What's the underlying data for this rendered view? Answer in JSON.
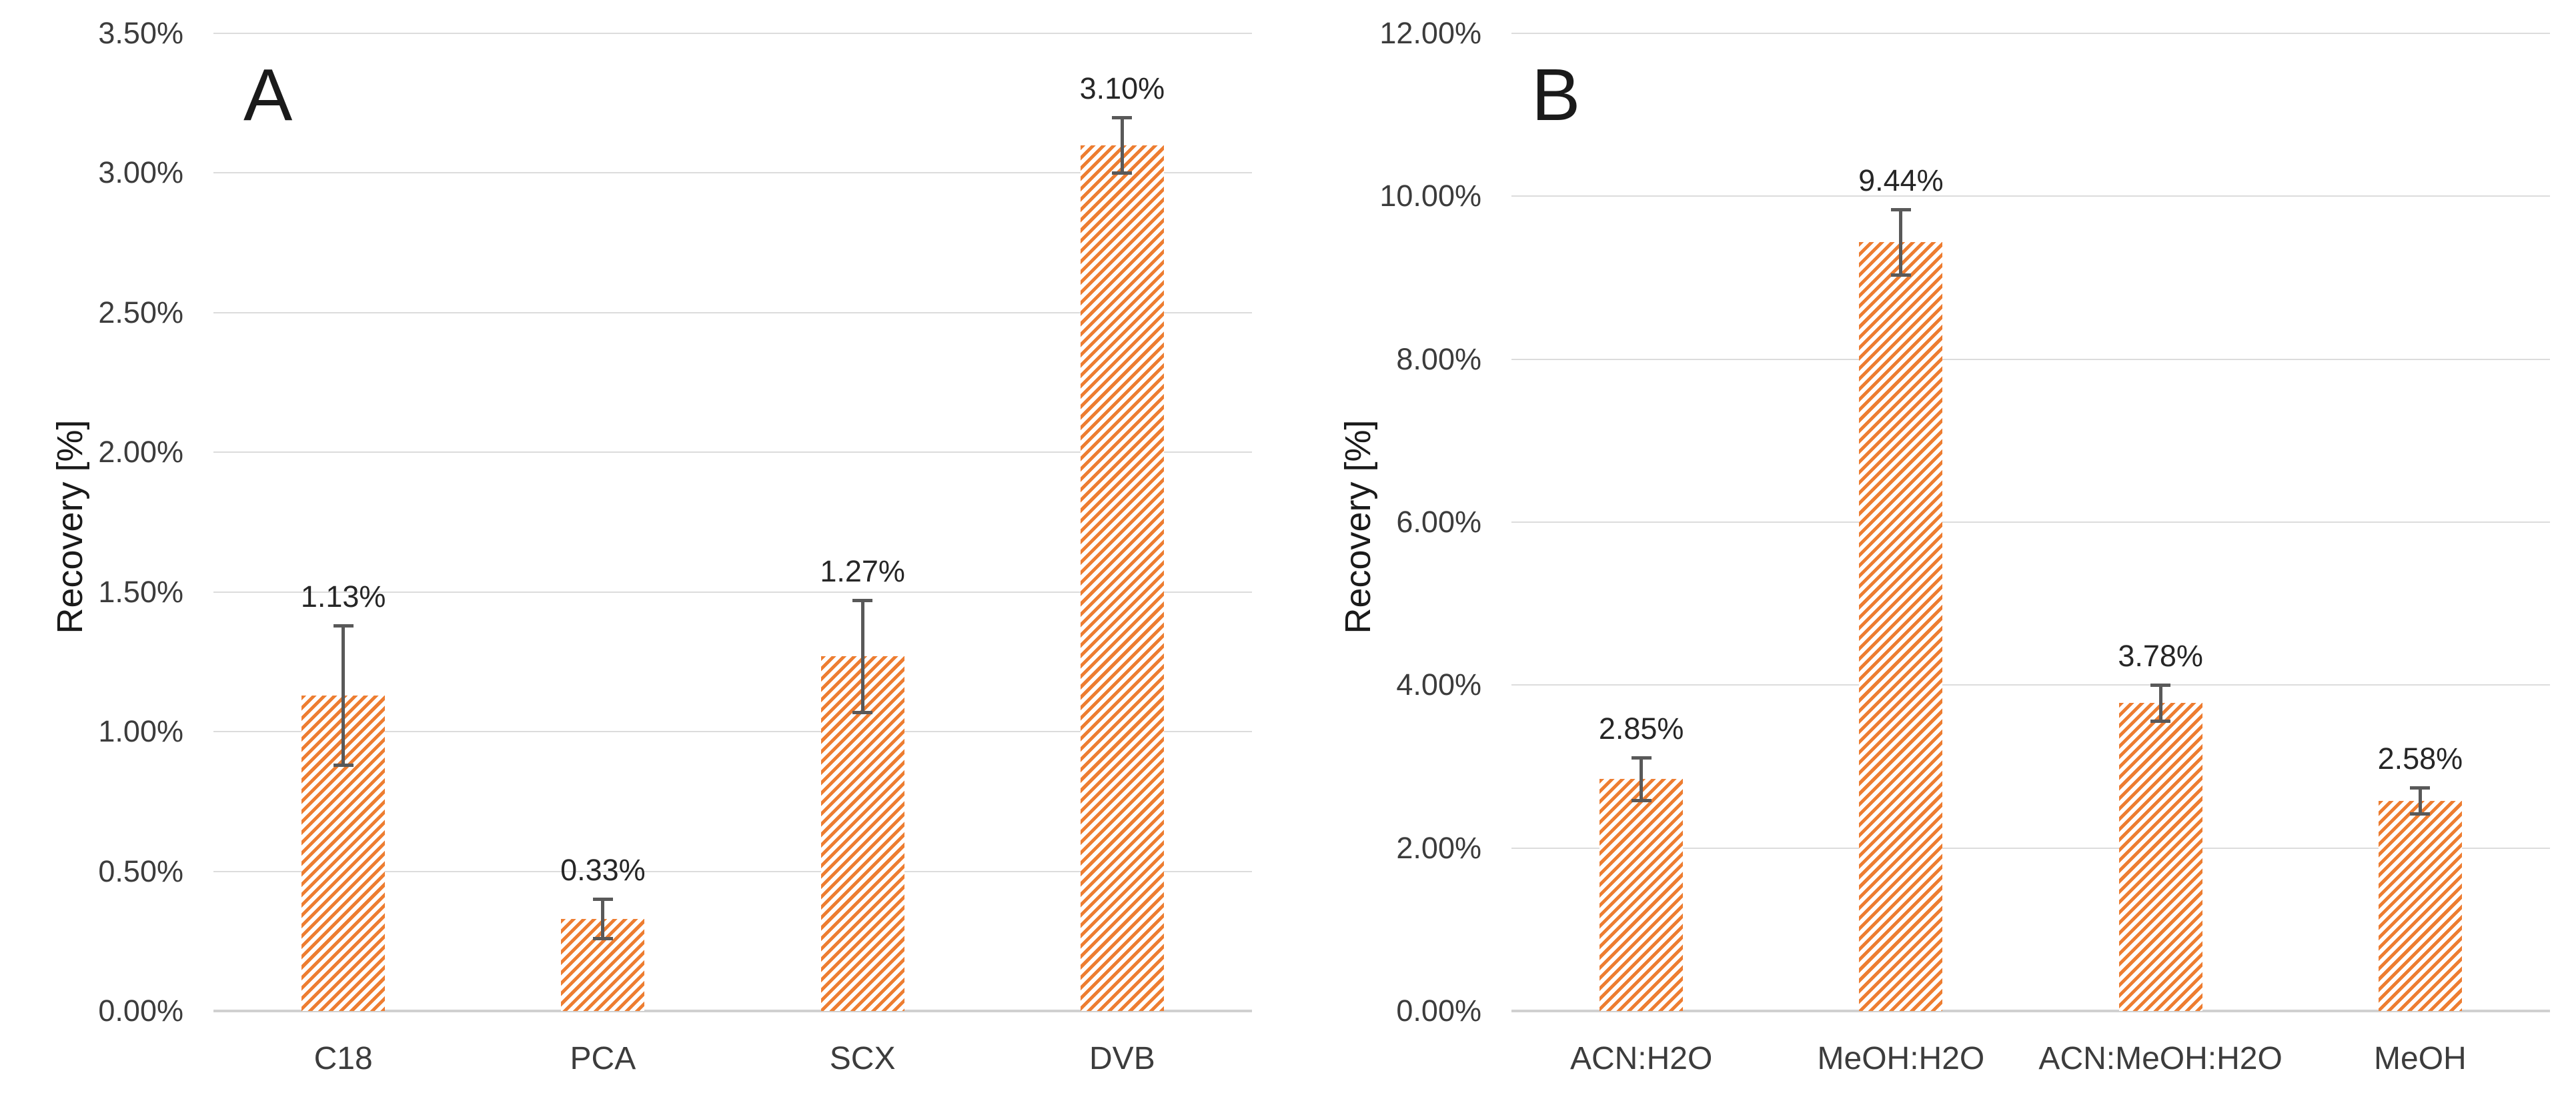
{
  "figure": {
    "colors": {
      "bar": "#ED7D31",
      "hatch_bg": "#FFFFFF",
      "error": "#595959",
      "grid": "#DCDCDC",
      "axis": "#D0D0D0",
      "text": "#3C3C3C",
      "label": "#262626",
      "title": "#1A1A1A"
    },
    "background": "#FFFFFF"
  },
  "chart_data": [
    {
      "type": "bar",
      "panel_label": "A",
      "title": "",
      "xlabel": "",
      "ylabel": "Recovery [%]",
      "categories": [
        "C18",
        "PCA",
        "SCX",
        "DVB"
      ],
      "values": [
        1.13,
        0.33,
        1.27,
        3.1
      ],
      "value_labels": [
        "1.13%",
        "0.33%",
        "1.27%",
        "3.10%"
      ],
      "error_bars": [
        0.25,
        0.07,
        0.2,
        0.1
      ],
      "ylim": [
        0,
        3.5
      ],
      "ytick_step": 0.5,
      "ytick_labels": [
        "0.00%",
        "0.50%",
        "1.00%",
        "1.50%",
        "2.00%",
        "2.50%",
        "3.00%",
        "3.50%"
      ],
      "grid": true,
      "legend_position": "none",
      "bar_pattern": "diagonal-hatch"
    },
    {
      "type": "bar",
      "panel_label": "B",
      "title": "",
      "xlabel": "",
      "ylabel": "Recovery [%]",
      "categories": [
        "ACN:H2O",
        "MeOH:H2O",
        "ACN:MeOH:H2O",
        "MeOH"
      ],
      "values": [
        2.85,
        9.44,
        3.78,
        2.58
      ],
      "value_labels": [
        "2.85%",
        "9.44%",
        "3.78%",
        "2.58%"
      ],
      "error_bars": [
        0.26,
        0.4,
        0.22,
        0.16
      ],
      "ylim": [
        0,
        12
      ],
      "ytick_step": 2,
      "ytick_labels": [
        "0.00%",
        "2.00%",
        "4.00%",
        "6.00%",
        "8.00%",
        "10.00%",
        "12.00%"
      ],
      "grid": true,
      "legend_position": "none",
      "bar_pattern": "diagonal-hatch"
    }
  ]
}
